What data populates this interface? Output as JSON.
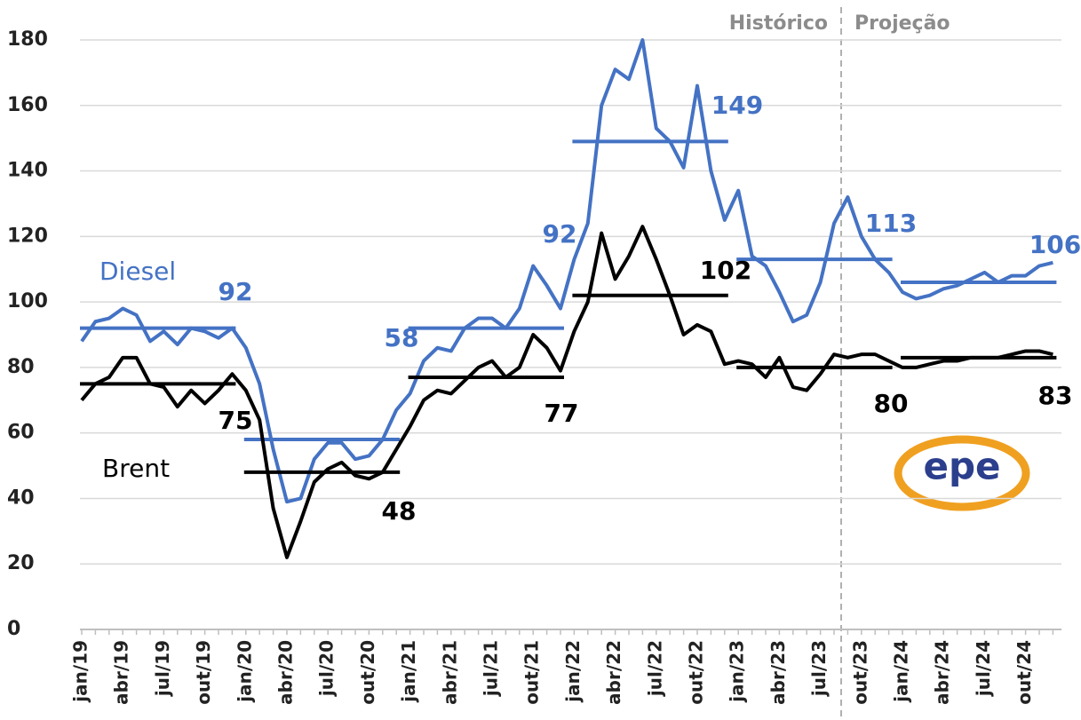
{
  "chart_data": {
    "type": "line",
    "categories": [
      "jan/19",
      null,
      null,
      "abr/19",
      null,
      null,
      "jul/19",
      null,
      null,
      "out/19",
      null,
      null,
      "jan/20",
      null,
      null,
      "abr/20",
      null,
      null,
      "jul/20",
      null,
      null,
      "out/20",
      null,
      null,
      "jan/21",
      null,
      null,
      "abr/21",
      null,
      null,
      "jul/21",
      null,
      null,
      "out/21",
      null,
      null,
      "jan/22",
      null,
      null,
      "abr/22",
      null,
      null,
      "jul/22",
      null,
      null,
      "out/22",
      null,
      null,
      "jan/23",
      null,
      null,
      "abr/23",
      null,
      null,
      "jul/23",
      null,
      null,
      "out/23",
      null,
      null,
      "jan/24",
      null,
      null,
      "abr/24",
      null,
      null,
      "jul/24",
      null,
      null,
      "out/24",
      null,
      null
    ],
    "series": [
      {
        "name": "Diesel",
        "color": "#4472c4",
        "values": [
          88,
          94,
          95,
          98,
          96,
          88,
          91,
          87,
          92,
          91,
          89,
          92,
          86,
          75,
          55,
          39,
          40,
          52,
          57,
          57,
          52,
          53,
          58,
          67,
          72,
          82,
          86,
          85,
          92,
          95,
          95,
          92,
          98,
          111,
          105,
          98,
          113,
          124,
          160,
          171,
          168,
          180,
          153,
          149,
          141,
          166,
          140,
          125,
          134,
          114,
          111,
          103,
          94,
          96,
          106,
          124,
          132,
          120,
          113,
          109,
          103,
          101,
          102,
          104,
          105,
          107,
          109,
          106,
          108,
          108,
          111,
          112
        ],
        "averages": [
          92,
          58,
          92,
          149,
          113,
          106
        ]
      },
      {
        "name": "Brent",
        "color": "#000000",
        "values": [
          70,
          75,
          77,
          83,
          83,
          75,
          74,
          68,
          73,
          69,
          73,
          78,
          73,
          64,
          37,
          22,
          33,
          45,
          49,
          51,
          47,
          46,
          48,
          55,
          62,
          70,
          73,
          72,
          76,
          80,
          82,
          77,
          80,
          90,
          86,
          79,
          91,
          100,
          121,
          107,
          114,
          123,
          113,
          102,
          90,
          93,
          91,
          81,
          82,
          81,
          77,
          83,
          74,
          73,
          78,
          84,
          83,
          84,
          84,
          82,
          80,
          80,
          81,
          82,
          82,
          83,
          83,
          83,
          84,
          85,
          85,
          84
        ],
        "averages": [
          75,
          48,
          77,
          102,
          80,
          83
        ]
      }
    ],
    "annotations": [
      "Histórico",
      "Projeção"
    ],
    "logo": "epe",
    "ylim": [
      0,
      180
    ],
    "yticks": [
      0,
      20,
      40,
      60,
      80,
      100,
      120,
      140,
      160,
      180
    ],
    "grid": true
  }
}
